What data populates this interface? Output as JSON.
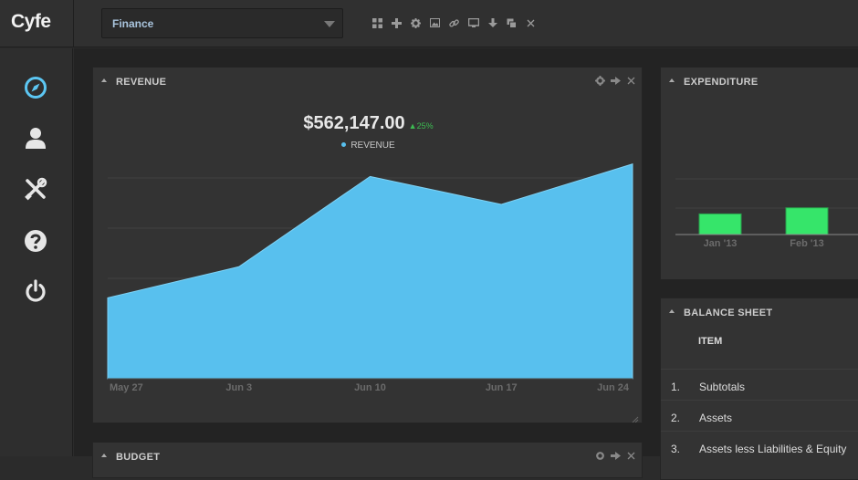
{
  "app": {
    "logo": "Cyfe"
  },
  "toolbar": {
    "dashboard_select": "Finance",
    "tools": [
      "grid-icon",
      "plus-icon",
      "gear-icon",
      "image-icon",
      "link-icon",
      "monitor-icon",
      "download-icon",
      "copy-icon",
      "close-icon"
    ]
  },
  "sidebar": {
    "items": [
      "compass-icon",
      "user-icon",
      "tools-icon",
      "help-icon",
      "power-icon"
    ],
    "active_color": "#5cc6f2"
  },
  "revenue_widget": {
    "title": "REVENUE",
    "total": "$562,147.00",
    "change": "▲25%",
    "legend": "REVENUE",
    "color": "#58c0ee",
    "chart_data": {
      "type": "area",
      "categories": [
        "May 27",
        "Jun 3",
        "Jun 10",
        "Jun 17",
        "Jun 24"
      ],
      "series": [
        {
          "name": "REVENUE",
          "values": [
            26,
            36,
            65,
            56,
            69
          ]
        }
      ],
      "ylim": [
        0,
        100
      ],
      "grid": true
    }
  },
  "expenditure_widget": {
    "title": "EXPENDITURE",
    "color": "#36e56a",
    "chart_data": {
      "type": "bar",
      "categories": [
        "Jan '13",
        "Feb '13"
      ],
      "values": [
        17,
        22
      ],
      "ylim": [
        0,
        100
      ],
      "grid": true
    }
  },
  "balance_widget": {
    "title": "BALANCE SHEET",
    "column": "ITEM",
    "rows": [
      {
        "num": "1.",
        "label": "Subtotals"
      },
      {
        "num": "2.",
        "label": "Assets"
      },
      {
        "num": "3.",
        "label": "Assets less Liabilities & Equity"
      }
    ]
  },
  "budget_widget": {
    "title": "BUDGET"
  }
}
